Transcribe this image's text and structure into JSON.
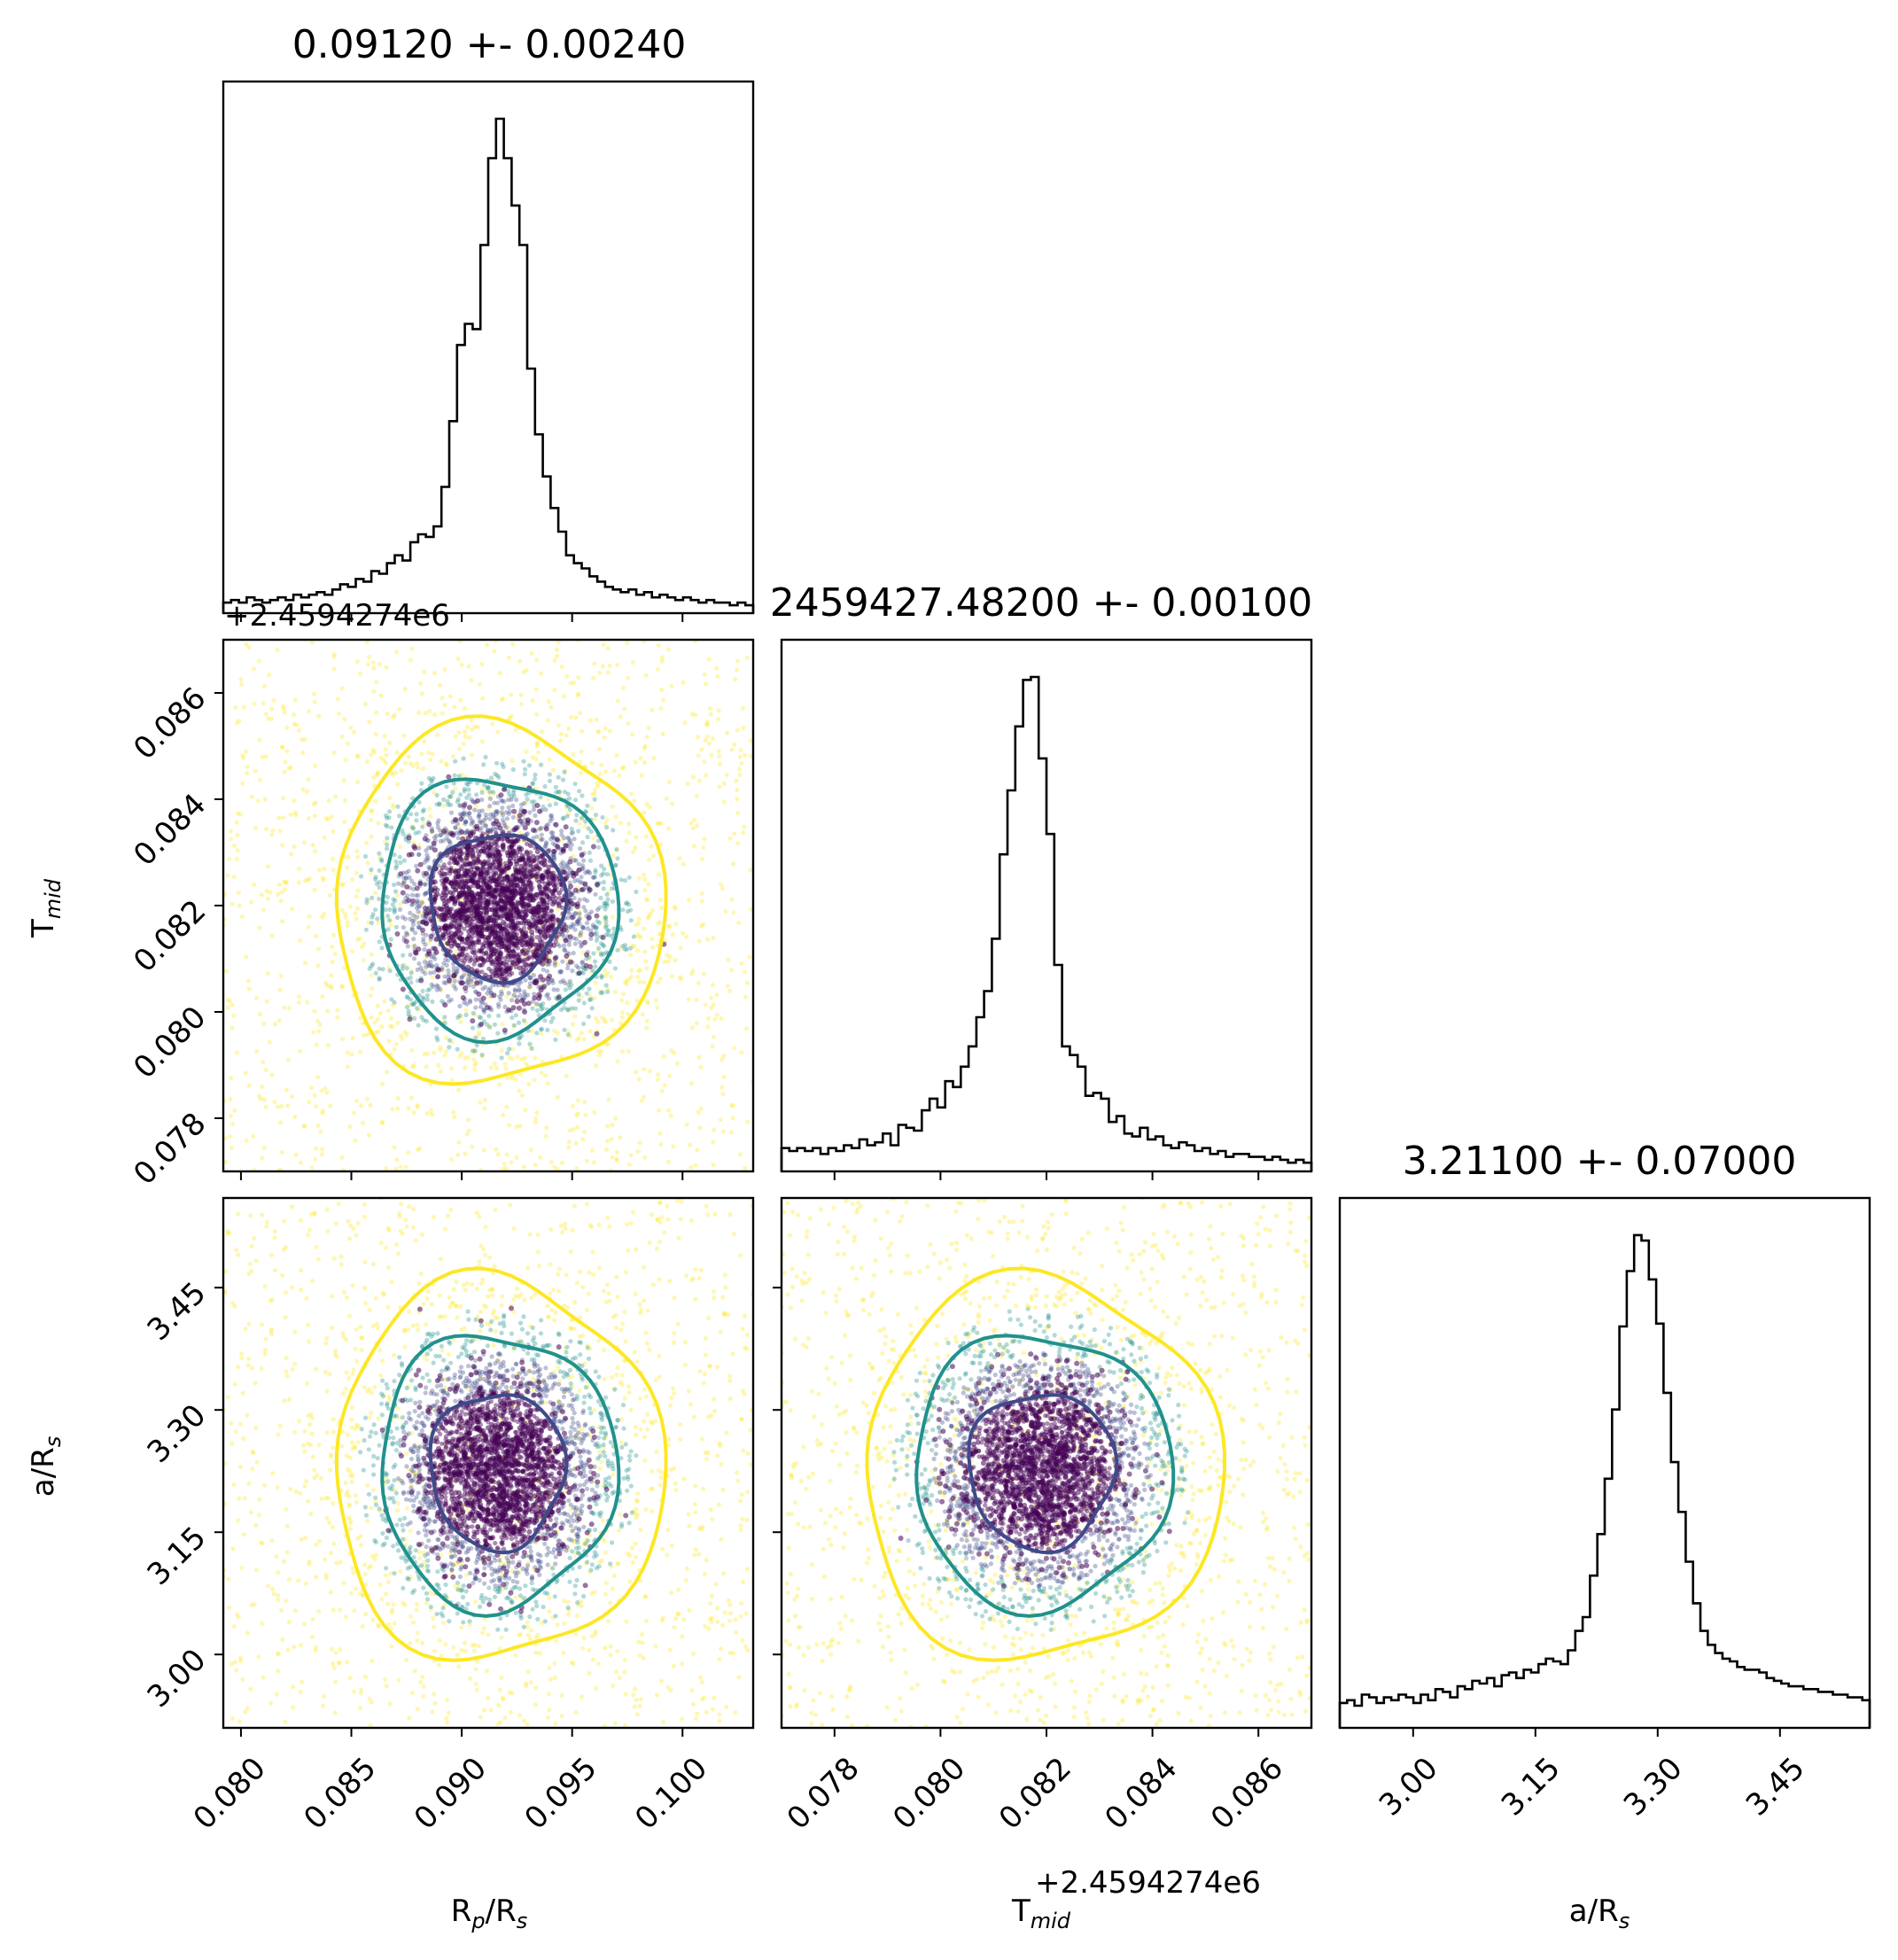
{
  "chart_data": {
    "type": "corner",
    "parameters": [
      {
        "key": "rp",
        "label": "R",
        "label_sub": "p",
        "label_tail": "/R",
        "label_tail_sub": "s",
        "range": [
          0.0792,
          0.1032
        ],
        "ticks": [
          "0.080",
          "0.085",
          "0.090",
          "0.095",
          "0.100"
        ],
        "tick_values": [
          0.08,
          0.085,
          0.09,
          0.095,
          0.1
        ],
        "median": 0.0912,
        "sigma": 0.0024,
        "title": "0.09120 +- 0.00240"
      },
      {
        "key": "tmid",
        "label": "T",
        "label_sub": "mid",
        "range": [
          0.077,
          0.087
        ],
        "ticks": [
          "0.078",
          "0.080",
          "0.082",
          "0.084",
          "0.086"
        ],
        "tick_values": [
          0.078,
          0.08,
          0.082,
          0.084,
          0.086
        ],
        "median": 0.082,
        "sigma": 0.001,
        "offset": "+2.4594274e6",
        "title": "2459427.48200 +- 0.00100"
      },
      {
        "key": "ars",
        "label": "a/R",
        "label_sub": "s",
        "range": [
          2.91,
          3.56
        ],
        "ticks": [
          "3.00",
          "3.15",
          "3.30",
          "3.45"
        ],
        "tick_values": [
          3.0,
          3.15,
          3.3,
          3.45
        ],
        "median": 3.211,
        "sigma": 0.07,
        "title": "3.21100 +- 0.07000"
      }
    ],
    "histograms": {
      "rp": [
        4,
        5,
        4,
        6,
        5,
        4,
        5,
        6,
        5,
        7,
        6,
        7,
        8,
        7,
        9,
        11,
        10,
        13,
        12,
        16,
        15,
        19,
        22,
        20,
        27,
        30,
        29,
        33,
        48,
        73,
        102,
        110,
        108,
        140,
        173,
        188,
        173,
        155,
        140,
        93,
        68,
        52,
        40,
        31,
        22,
        19,
        17,
        14,
        12,
        10,
        9,
        8,
        9,
        7,
        8,
        6,
        7,
        6,
        5,
        6,
        5,
        4,
        5,
        4,
        4,
        3,
        4,
        3
      ],
      "tmid": [
        8,
        7,
        8,
        7,
        8,
        6,
        8,
        7,
        9,
        8,
        11,
        9,
        10,
        13,
        9,
        16,
        15,
        14,
        21,
        25,
        22,
        31,
        29,
        36,
        43,
        53,
        62,
        80,
        109,
        131,
        153,
        169,
        170,
        142,
        116,
        71,
        43,
        40,
        36,
        26,
        27,
        25,
        17,
        19,
        13,
        12,
        15,
        11,
        12,
        9,
        8,
        10,
        9,
        7,
        8,
        6,
        7,
        5,
        6,
        6,
        5,
        5,
        4,
        5,
        4,
        3,
        4,
        3
      ],
      "ars": [
        9,
        10,
        8,
        12,
        11,
        9,
        11,
        10,
        12,
        11,
        9,
        12,
        10,
        14,
        13,
        11,
        15,
        14,
        17,
        16,
        18,
        15,
        19,
        20,
        18,
        21,
        20,
        23,
        25,
        24,
        23,
        28,
        35,
        40,
        55,
        70,
        90,
        115,
        145,
        165,
        178,
        176,
        162,
        146,
        121,
        96,
        78,
        60,
        45,
        35,
        30,
        27,
        25,
        24,
        22,
        21,
        21,
        20,
        18,
        17,
        16,
        15,
        15,
        14,
        14,
        13,
        13,
        12,
        12,
        11,
        11,
        10
      ]
    },
    "pairs": [
      {
        "x": "rp",
        "y": "tmid",
        "center": [
          0.0916,
          0.082
        ],
        "sx": 0.0021,
        "sy": 0.00095
      },
      {
        "x": "rp",
        "y": "ars",
        "center": [
          0.0916,
          3.226
        ],
        "sx": 0.0021,
        "sy": 0.066
      },
      {
        "x": "tmid",
        "y": "ars",
        "center": [
          0.0819,
          3.226
        ],
        "sx": 0.00095,
        "sy": 0.066
      }
    ],
    "contour_levels": [
      "39.3%",
      "86.5%",
      "98.9%"
    ],
    "colors": {
      "level1": "#3e4a89",
      "level2": "#21918c",
      "level3": "#fde725",
      "core": "#440154",
      "histogram": "#000000"
    },
    "x_offset_labels": {
      "rp_panel": "+2.4594274e6",
      "tmid_bottom": "+2.4594274e6"
    }
  }
}
